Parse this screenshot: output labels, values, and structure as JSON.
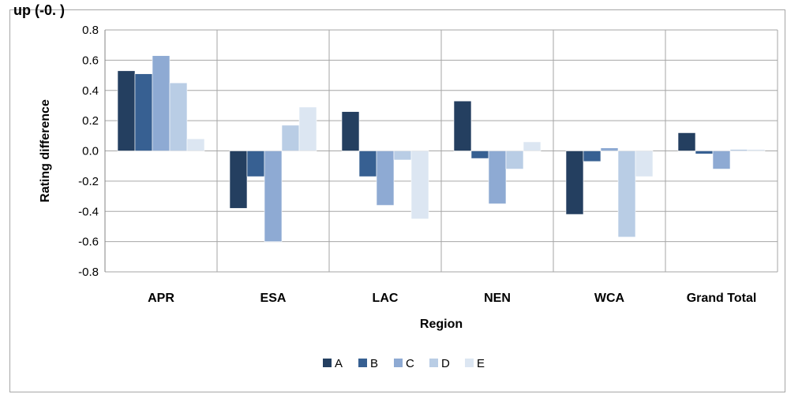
{
  "top_text": "up (-0.   )",
  "chart_data": {
    "type": "bar",
    "categories": [
      "APR",
      "ESA",
      "LAC",
      "NEN",
      "WCA",
      "Grand Total"
    ],
    "series": [
      {
        "name": "A",
        "color": "#243f60",
        "values": [
          0.53,
          -0.38,
          0.26,
          0.33,
          -0.42,
          0.12
        ]
      },
      {
        "name": "B",
        "color": "#376092",
        "values": [
          0.51,
          -0.17,
          -0.17,
          -0.05,
          -0.07,
          -0.02
        ]
      },
      {
        "name": "C",
        "color": "#8eaad3",
        "values": [
          0.63,
          -0.6,
          -0.36,
          -0.35,
          0.02,
          -0.12
        ]
      },
      {
        "name": "D",
        "color": "#b9cde5",
        "values": [
          0.45,
          0.17,
          -0.06,
          -0.12,
          -0.57,
          0.01
        ]
      },
      {
        "name": "E",
        "color": "#dce6f2",
        "values": [
          0.08,
          0.29,
          -0.45,
          0.06,
          -0.17,
          0.01
        ]
      }
    ],
    "xlabel": "Region",
    "ylabel": "Rating difference",
    "ylim": [
      -0.8,
      0.8
    ],
    "yticks": [
      "0.8",
      "0.6",
      "0.4",
      "0.2",
      "0.0",
      "-0.2",
      "-0.4",
      "-0.6",
      "-0.8"
    ],
    "ytick_values": [
      0.8,
      0.6,
      0.4,
      0.2,
      0.0,
      -0.2,
      -0.4,
      -0.6,
      -0.8
    ],
    "grid": true,
    "legend_position": "bottom"
  }
}
